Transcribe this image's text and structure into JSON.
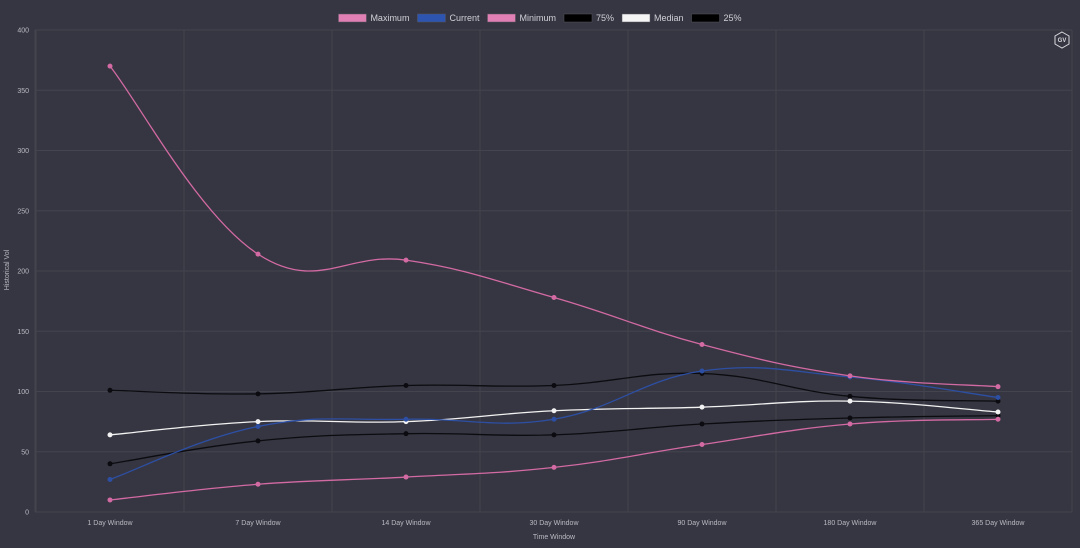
{
  "badge": {
    "label": "GV"
  },
  "chart_data": {
    "type": "line",
    "xlabel": "Time Window",
    "ylabel": "Historical Vol",
    "ylim": [
      0,
      400
    ],
    "yticks": [
      0,
      50,
      100,
      150,
      200,
      250,
      300,
      350,
      400
    ],
    "grid": true,
    "legend_position": "top-center",
    "categories": [
      "1 Day Window",
      "7 Day Window",
      "14 Day Window",
      "30 Day Window",
      "90 Day Window",
      "180 Day Window",
      "365 Day Window"
    ],
    "series": [
      {
        "name": "Maximum",
        "color": "#d36aa3",
        "values": [
          370,
          214,
          209,
          178,
          139,
          113,
          104
        ]
      },
      {
        "name": "Current",
        "color": "#2d4fa3",
        "values": [
          27,
          71,
          77,
          77,
          117,
          112,
          95
        ]
      },
      {
        "name": "Minimum",
        "color": "#d36aa3",
        "values": [
          10,
          23,
          29,
          37,
          56,
          73,
          77
        ]
      },
      {
        "name": "75%",
        "color": "#0b0b10",
        "values": [
          101,
          98,
          105,
          105,
          115,
          96,
          92
        ]
      },
      {
        "name": "Median",
        "color": "#f2f2f2",
        "values": [
          64,
          75,
          75,
          84,
          87,
          92,
          83
        ]
      },
      {
        "name": "25%",
        "color": "#0b0b10",
        "values": [
          40,
          59,
          65,
          64,
          73,
          78,
          80
        ]
      }
    ]
  }
}
